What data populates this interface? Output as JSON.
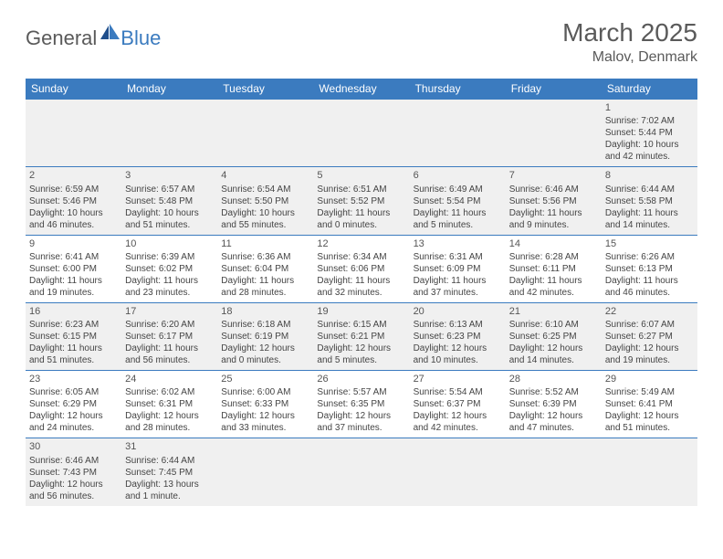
{
  "logo": {
    "text1": "General",
    "text2": "Blue"
  },
  "title": "March 2025",
  "location": "Malov, Denmark",
  "colors": {
    "header_bg": "#3b7bbf",
    "header_fg": "#ffffff",
    "row_alt_bg": "#f0f0f0",
    "row_bg": "#ffffff",
    "border": "#3b7bbf",
    "title_color": "#5a5a5a",
    "logo_gray": "#5a5a5a",
    "logo_blue": "#3b7bbf"
  },
  "weekdays": [
    "Sunday",
    "Monday",
    "Tuesday",
    "Wednesday",
    "Thursday",
    "Friday",
    "Saturday"
  ],
  "weeks": [
    [
      null,
      null,
      null,
      null,
      null,
      null,
      {
        "n": "1",
        "sr": "Sunrise: 7:02 AM",
        "ss": "Sunset: 5:44 PM",
        "dl1": "Daylight: 10 hours",
        "dl2": "and 42 minutes."
      }
    ],
    [
      {
        "n": "2",
        "sr": "Sunrise: 6:59 AM",
        "ss": "Sunset: 5:46 PM",
        "dl1": "Daylight: 10 hours",
        "dl2": "and 46 minutes."
      },
      {
        "n": "3",
        "sr": "Sunrise: 6:57 AM",
        "ss": "Sunset: 5:48 PM",
        "dl1": "Daylight: 10 hours",
        "dl2": "and 51 minutes."
      },
      {
        "n": "4",
        "sr": "Sunrise: 6:54 AM",
        "ss": "Sunset: 5:50 PM",
        "dl1": "Daylight: 10 hours",
        "dl2": "and 55 minutes."
      },
      {
        "n": "5",
        "sr": "Sunrise: 6:51 AM",
        "ss": "Sunset: 5:52 PM",
        "dl1": "Daylight: 11 hours",
        "dl2": "and 0 minutes."
      },
      {
        "n": "6",
        "sr": "Sunrise: 6:49 AM",
        "ss": "Sunset: 5:54 PM",
        "dl1": "Daylight: 11 hours",
        "dl2": "and 5 minutes."
      },
      {
        "n": "7",
        "sr": "Sunrise: 6:46 AM",
        "ss": "Sunset: 5:56 PM",
        "dl1": "Daylight: 11 hours",
        "dl2": "and 9 minutes."
      },
      {
        "n": "8",
        "sr": "Sunrise: 6:44 AM",
        "ss": "Sunset: 5:58 PM",
        "dl1": "Daylight: 11 hours",
        "dl2": "and 14 minutes."
      }
    ],
    [
      {
        "n": "9",
        "sr": "Sunrise: 6:41 AM",
        "ss": "Sunset: 6:00 PM",
        "dl1": "Daylight: 11 hours",
        "dl2": "and 19 minutes."
      },
      {
        "n": "10",
        "sr": "Sunrise: 6:39 AM",
        "ss": "Sunset: 6:02 PM",
        "dl1": "Daylight: 11 hours",
        "dl2": "and 23 minutes."
      },
      {
        "n": "11",
        "sr": "Sunrise: 6:36 AM",
        "ss": "Sunset: 6:04 PM",
        "dl1": "Daylight: 11 hours",
        "dl2": "and 28 minutes."
      },
      {
        "n": "12",
        "sr": "Sunrise: 6:34 AM",
        "ss": "Sunset: 6:06 PM",
        "dl1": "Daylight: 11 hours",
        "dl2": "and 32 minutes."
      },
      {
        "n": "13",
        "sr": "Sunrise: 6:31 AM",
        "ss": "Sunset: 6:09 PM",
        "dl1": "Daylight: 11 hours",
        "dl2": "and 37 minutes."
      },
      {
        "n": "14",
        "sr": "Sunrise: 6:28 AM",
        "ss": "Sunset: 6:11 PM",
        "dl1": "Daylight: 11 hours",
        "dl2": "and 42 minutes."
      },
      {
        "n": "15",
        "sr": "Sunrise: 6:26 AM",
        "ss": "Sunset: 6:13 PM",
        "dl1": "Daylight: 11 hours",
        "dl2": "and 46 minutes."
      }
    ],
    [
      {
        "n": "16",
        "sr": "Sunrise: 6:23 AM",
        "ss": "Sunset: 6:15 PM",
        "dl1": "Daylight: 11 hours",
        "dl2": "and 51 minutes."
      },
      {
        "n": "17",
        "sr": "Sunrise: 6:20 AM",
        "ss": "Sunset: 6:17 PM",
        "dl1": "Daylight: 11 hours",
        "dl2": "and 56 minutes."
      },
      {
        "n": "18",
        "sr": "Sunrise: 6:18 AM",
        "ss": "Sunset: 6:19 PM",
        "dl1": "Daylight: 12 hours",
        "dl2": "and 0 minutes."
      },
      {
        "n": "19",
        "sr": "Sunrise: 6:15 AM",
        "ss": "Sunset: 6:21 PM",
        "dl1": "Daylight: 12 hours",
        "dl2": "and 5 minutes."
      },
      {
        "n": "20",
        "sr": "Sunrise: 6:13 AM",
        "ss": "Sunset: 6:23 PM",
        "dl1": "Daylight: 12 hours",
        "dl2": "and 10 minutes."
      },
      {
        "n": "21",
        "sr": "Sunrise: 6:10 AM",
        "ss": "Sunset: 6:25 PM",
        "dl1": "Daylight: 12 hours",
        "dl2": "and 14 minutes."
      },
      {
        "n": "22",
        "sr": "Sunrise: 6:07 AM",
        "ss": "Sunset: 6:27 PM",
        "dl1": "Daylight: 12 hours",
        "dl2": "and 19 minutes."
      }
    ],
    [
      {
        "n": "23",
        "sr": "Sunrise: 6:05 AM",
        "ss": "Sunset: 6:29 PM",
        "dl1": "Daylight: 12 hours",
        "dl2": "and 24 minutes."
      },
      {
        "n": "24",
        "sr": "Sunrise: 6:02 AM",
        "ss": "Sunset: 6:31 PM",
        "dl1": "Daylight: 12 hours",
        "dl2": "and 28 minutes."
      },
      {
        "n": "25",
        "sr": "Sunrise: 6:00 AM",
        "ss": "Sunset: 6:33 PM",
        "dl1": "Daylight: 12 hours",
        "dl2": "and 33 minutes."
      },
      {
        "n": "26",
        "sr": "Sunrise: 5:57 AM",
        "ss": "Sunset: 6:35 PM",
        "dl1": "Daylight: 12 hours",
        "dl2": "and 37 minutes."
      },
      {
        "n": "27",
        "sr": "Sunrise: 5:54 AM",
        "ss": "Sunset: 6:37 PM",
        "dl1": "Daylight: 12 hours",
        "dl2": "and 42 minutes."
      },
      {
        "n": "28",
        "sr": "Sunrise: 5:52 AM",
        "ss": "Sunset: 6:39 PM",
        "dl1": "Daylight: 12 hours",
        "dl2": "and 47 minutes."
      },
      {
        "n": "29",
        "sr": "Sunrise: 5:49 AM",
        "ss": "Sunset: 6:41 PM",
        "dl1": "Daylight: 12 hours",
        "dl2": "and 51 minutes."
      }
    ],
    [
      {
        "n": "30",
        "sr": "Sunrise: 6:46 AM",
        "ss": "Sunset: 7:43 PM",
        "dl1": "Daylight: 12 hours",
        "dl2": "and 56 minutes."
      },
      {
        "n": "31",
        "sr": "Sunrise: 6:44 AM",
        "ss": "Sunset: 7:45 PM",
        "dl1": "Daylight: 13 hours",
        "dl2": "and 1 minute."
      },
      null,
      null,
      null,
      null,
      null
    ]
  ]
}
